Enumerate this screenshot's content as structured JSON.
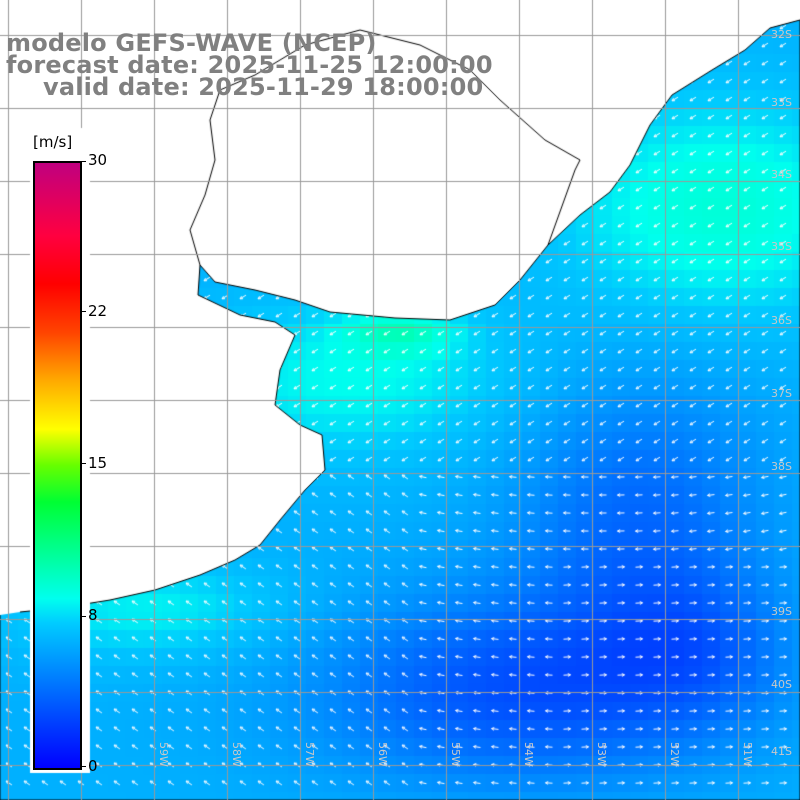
{
  "title": {
    "model": "modelo GEFS-WAVE (NCEP)",
    "forecast": "forecast date: 2025-11-25 12:00:00",
    "valid": "valid date: 2025-11-29 18:00:00"
  },
  "colorbar": {
    "unit": "[m/s]",
    "min": 0,
    "max": 30,
    "ticks": [
      "0",
      "8",
      "15",
      "22",
      "30"
    ]
  },
  "lat_labels": [
    "32S",
    "33S",
    "34S",
    "35S",
    "36S",
    "37S",
    "38S",
    "39S",
    "40S",
    "41S"
  ],
  "lon_labels": [
    "59W",
    "58W",
    "57W",
    "56W",
    "55W",
    "54W",
    "53W",
    "52W",
    "51W"
  ],
  "colors": {
    "land": "#ffffff",
    "coast": "#000000",
    "grid": "#999999",
    "arrows": "#ffffff",
    "text": "#808080"
  }
}
